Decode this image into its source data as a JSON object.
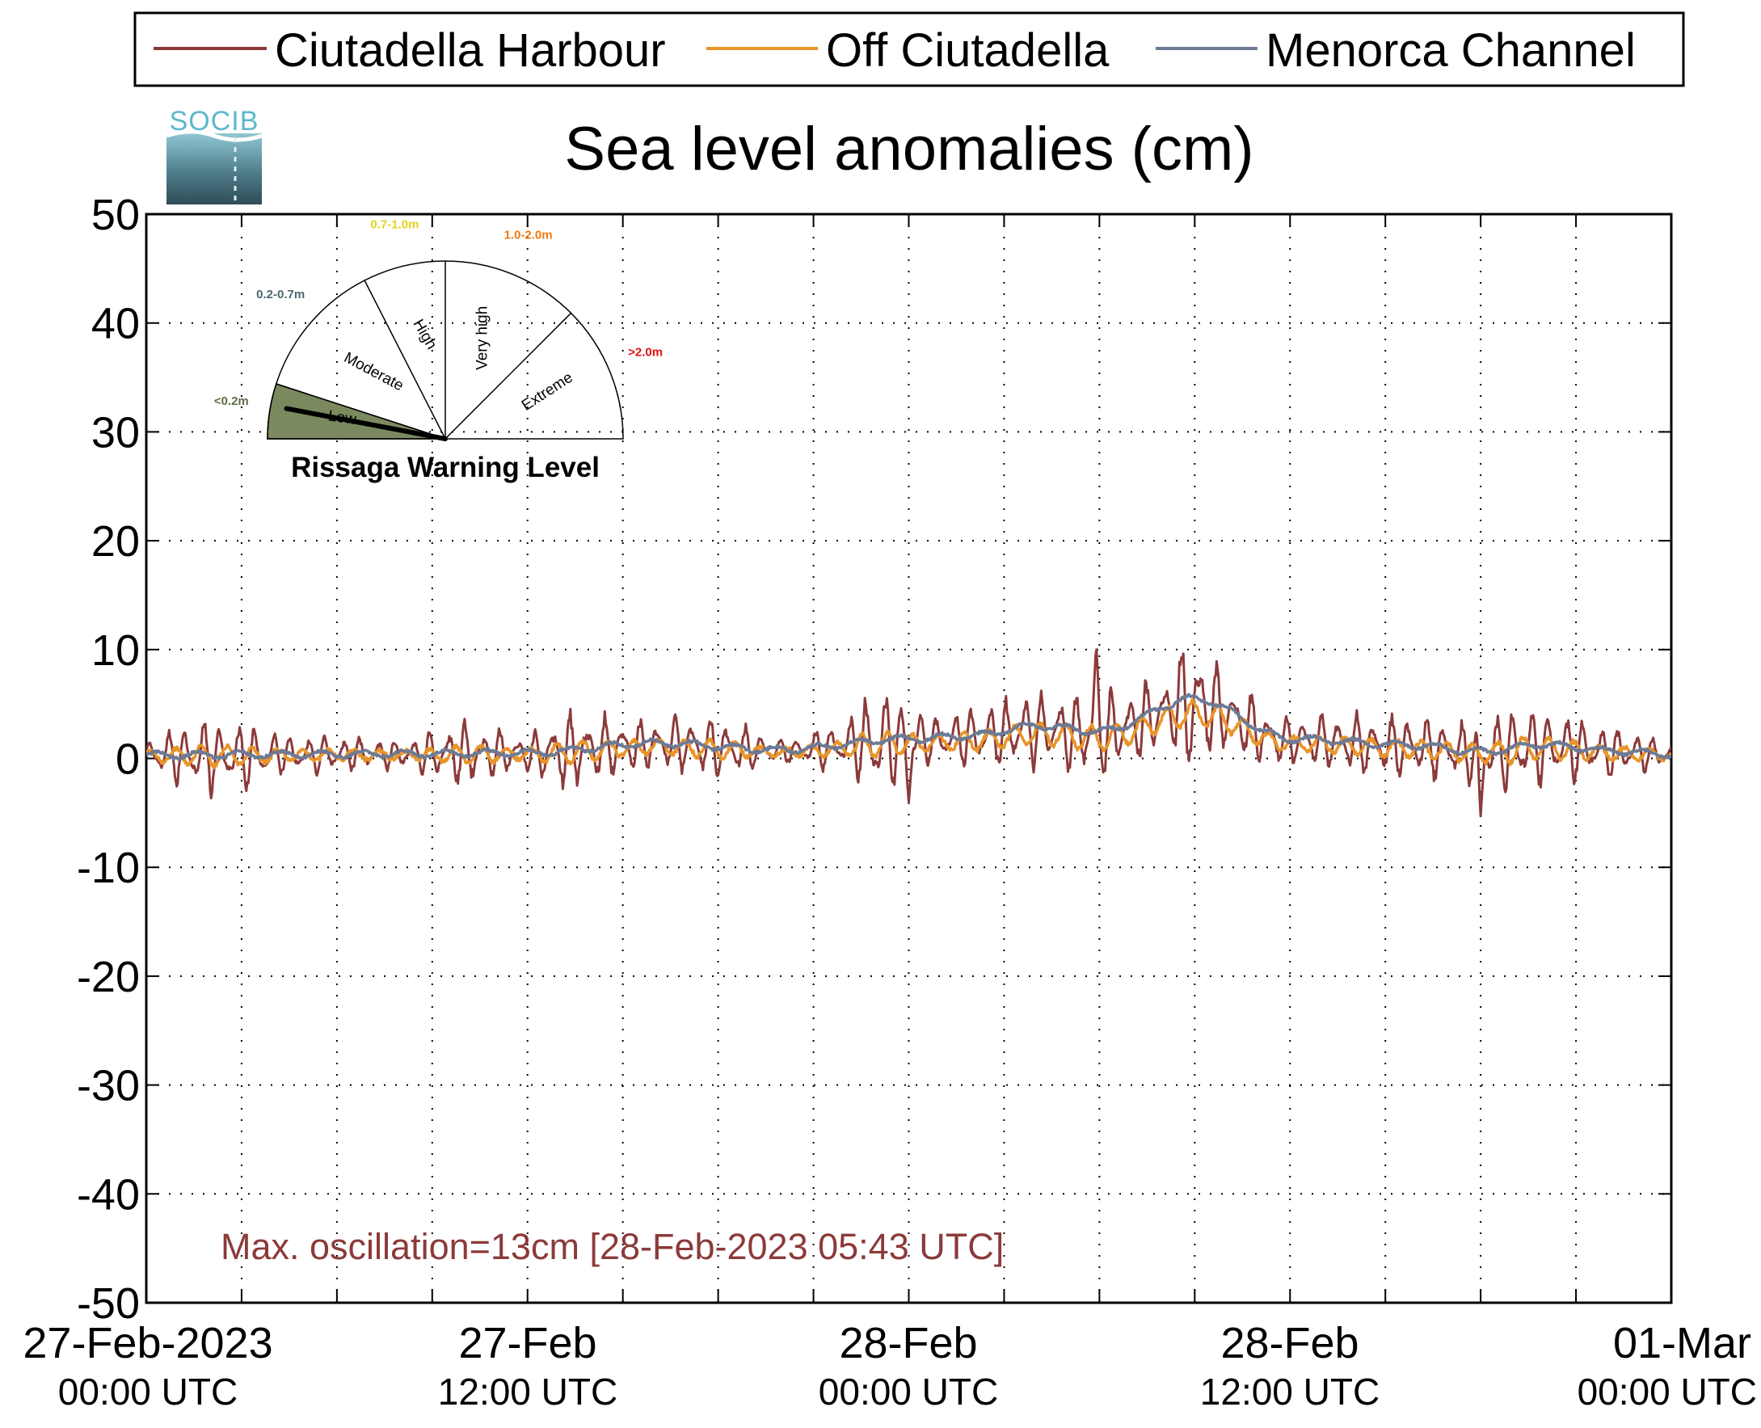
{
  "chart_data": {
    "type": "line",
    "title": "Sea level anomalies (cm)",
    "ylim": [
      -50,
      50
    ],
    "yticks": [
      50,
      40,
      30,
      20,
      10,
      0,
      -10,
      -20,
      -30,
      -40,
      -50
    ],
    "xlim_hours": [
      0,
      48
    ],
    "x_ticks": [
      {
        "line1": "27-Feb-2023",
        "line2": "00:00 UTC"
      },
      {
        "line1": "27-Feb",
        "line2": "12:00 UTC"
      },
      {
        "line1": "28-Feb",
        "line2": "00:00 UTC"
      },
      {
        "line1": "28-Feb",
        "line2": "12:00 UTC"
      },
      {
        "line1": "01-Mar",
        "line2": "00:00 UTC"
      }
    ],
    "grid": true,
    "legend_position": "top",
    "series": [
      {
        "name": "Ciutadella Harbour",
        "color": "#8c3a3a"
      },
      {
        "name": "Off Ciutadella",
        "color": "#e8952a"
      },
      {
        "name": "Menorca Channel",
        "color": "#6c7a96"
      }
    ],
    "trend": {
      "x_hours": [
        0,
        6,
        12,
        16,
        20,
        24,
        26,
        28,
        30,
        33,
        36,
        40,
        42,
        44,
        45,
        46,
        48
      ],
      "values": [
        0.3,
        0.4,
        0.5,
        1.4,
        0.8,
        1.8,
        2.1,
        3.0,
        2.5,
        5.5,
        1.8,
        1.2,
        0.6,
        1.3,
        1.0,
        0.7,
        0.4
      ]
    },
    "harbour_amplitude": {
      "x_hours": [
        0,
        2,
        5,
        8,
        10,
        12,
        13,
        16,
        18,
        20,
        22,
        23,
        24,
        25,
        26,
        28,
        30,
        32,
        33,
        33.5,
        34,
        36,
        38,
        40,
        42,
        43,
        44,
        46,
        48
      ],
      "values": [
        1.5,
        3.0,
        1.5,
        1.2,
        2.5,
        1.5,
        3.0,
        2.0,
        2.5,
        1.0,
        2.0,
        5.0,
        2.5,
        2.0,
        2.5,
        3.0,
        3.5,
        3.0,
        6.0,
        4.0,
        3.0,
        2.0,
        2.5,
        2.5,
        2.5,
        3.5,
        3.0,
        2.0,
        1.2
      ]
    },
    "peaks": [
      {
        "x_hours": 29.9,
        "value": 10.5
      },
      {
        "x_hours": 42.0,
        "value": -5.3
      },
      {
        "x_hours": 24.0,
        "value": -4.0
      }
    ],
    "annotation": "Max. oscillation=13cm [28-Feb-2023 05:43 UTC]"
  },
  "gauge": {
    "title": "Rissaga Warning Level",
    "level_fraction": 0.06,
    "sectors": [
      {
        "label": "Low",
        "range": "<0.2m",
        "range_color": "#5e6e4a"
      },
      {
        "label": "Moderate",
        "range": "0.2-0.7m",
        "range_color": "#4e6670"
      },
      {
        "label": "High",
        "range": "0.7-1.0m",
        "range_color": "#e6d21e"
      },
      {
        "label": "Very high",
        "range": "1.0-2.0m",
        "range_color": "#ef7a10"
      },
      {
        "label": "Extreme",
        "range": ">2.0m",
        "range_color": "#e01010"
      }
    ],
    "active_fill": "#7a8a5e"
  },
  "logo": {
    "text": "SOCIB"
  }
}
